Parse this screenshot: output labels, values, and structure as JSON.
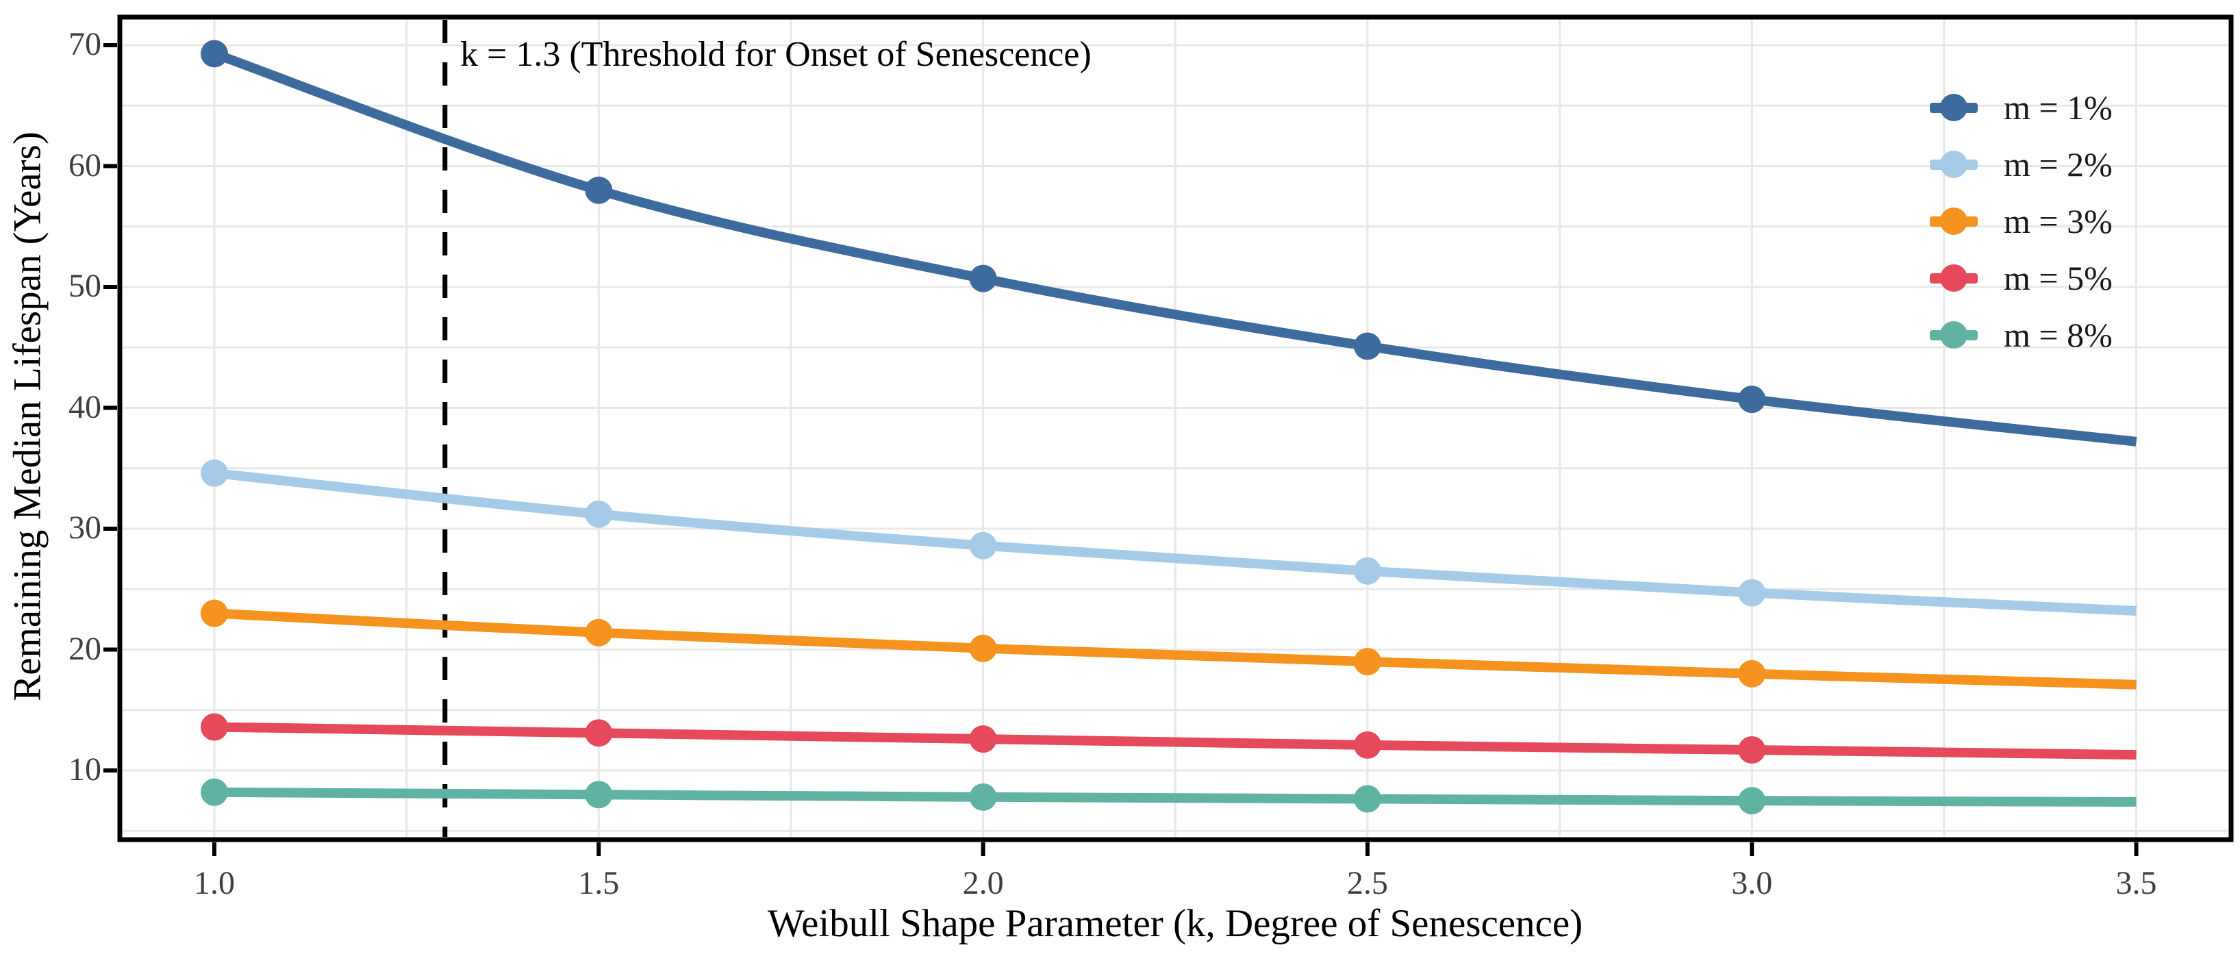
{
  "chart_data": {
    "type": "line",
    "title": "",
    "xlabel": "Weibull Shape Parameter (k, Degree of Senescence)",
    "ylabel": "Remaining Median Lifespan (Years)",
    "x": [
      1.0,
      1.5,
      2.0,
      2.5,
      3.0,
      3.5
    ],
    "series": [
      {
        "name": "m = 1%",
        "color": "#3D6B9E",
        "values": [
          69.3,
          58.0,
          50.7,
          45.1,
          40.7,
          37.2
        ]
      },
      {
        "name": "m = 2%",
        "color": "#A6CBE8",
        "values": [
          34.6,
          31.2,
          28.6,
          26.5,
          24.7,
          23.2
        ]
      },
      {
        "name": "m = 3%",
        "color": "#F6921E",
        "values": [
          23.0,
          21.4,
          20.1,
          19.0,
          18.0,
          17.1
        ]
      },
      {
        "name": "m = 5%",
        "color": "#E5495B",
        "values": [
          13.6,
          13.1,
          12.6,
          12.1,
          11.7,
          11.3
        ]
      },
      {
        "name": "m = 8%",
        "color": "#60B2A3",
        "values": [
          8.2,
          8.0,
          7.8,
          7.65,
          7.5,
          7.4
        ]
      }
    ],
    "marker_x": [
      1.0,
      1.5,
      2.0,
      2.5,
      3.0
    ],
    "xticks": [
      1.0,
      1.5,
      2.0,
      2.5,
      3.0,
      3.5
    ],
    "yticks": [
      10,
      20,
      30,
      40,
      50,
      60,
      70
    ],
    "xtick_labels": [
      "1.0",
      "1.5",
      "2.0",
      "2.5",
      "3.0",
      "3.5"
    ],
    "ytick_labels": [
      "10",
      "20",
      "30",
      "40",
      "50",
      "60",
      "70"
    ],
    "xlim": [
      0.87,
      3.62
    ],
    "ylim": [
      4.3,
      72.3
    ],
    "grid": {
      "on": true,
      "x_minor_step": 0.25,
      "y_minor_step": 5,
      "color": "#E8E8E8"
    },
    "vline": {
      "x": 1.3,
      "style": "dashed",
      "color": "#000000"
    },
    "annotation": {
      "text": "k = 1.3 (Threshold for Onset of Senescence)",
      "x": 1.3
    },
    "legend": {
      "position": "upper right"
    },
    "colors": {
      "spine": "#000000",
      "tick_label": "#3f3f3f",
      "axis_title": "#000000",
      "background": "#ffffff"
    }
  }
}
